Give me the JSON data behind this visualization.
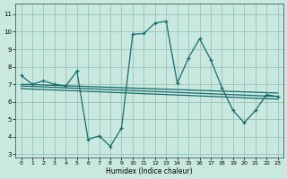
{
  "xlabel": "Humidex (Indice chaleur)",
  "ylabel": "",
  "background_color": "#c8e8e0",
  "grid_color": "#a0c8c0",
  "line_color": "#1a6b6b",
  "xlim": [
    -0.5,
    23.5
  ],
  "ylim": [
    2.8,
    11.6
  ],
  "yticks": [
    3,
    4,
    5,
    6,
    7,
    8,
    9,
    10,
    11
  ],
  "xticks": [
    0,
    1,
    2,
    3,
    4,
    5,
    6,
    7,
    8,
    9,
    10,
    11,
    12,
    13,
    14,
    15,
    16,
    17,
    18,
    19,
    20,
    21,
    22,
    23
  ],
  "main_series": {
    "x": [
      0,
      1,
      2,
      3,
      4,
      5,
      6,
      7,
      8,
      9,
      10,
      11,
      12,
      13,
      14,
      15,
      16,
      17,
      18,
      19,
      20,
      21,
      22,
      23
    ],
    "y": [
      7.5,
      7.0,
      7.2,
      7.0,
      6.9,
      7.75,
      3.85,
      4.05,
      3.45,
      4.5,
      9.85,
      9.9,
      10.5,
      10.6,
      7.05,
      8.5,
      9.6,
      8.4,
      6.8,
      5.5,
      4.8,
      5.5,
      6.4,
      6.3
    ]
  },
  "trend_lines": [
    {
      "x": [
        0,
        23
      ],
      "y": [
        7.0,
        6.5
      ]
    },
    {
      "x": [
        0,
        23
      ],
      "y": [
        6.9,
        6.3
      ]
    },
    {
      "x": [
        0,
        23
      ],
      "y": [
        6.75,
        6.15
      ]
    }
  ]
}
